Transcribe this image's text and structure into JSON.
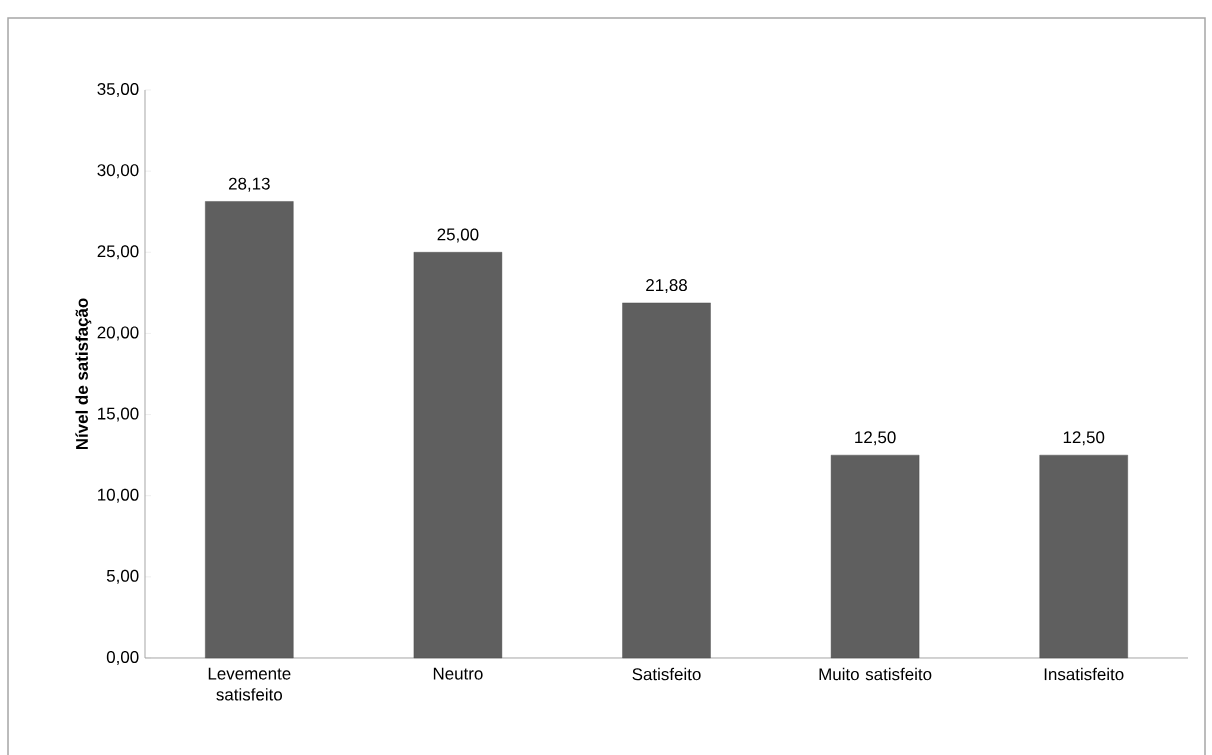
{
  "chart_data": {
    "type": "bar",
    "ylabel": "Nível de satisfação",
    "categories": [
      "Levemente satisfeito",
      "Neutro",
      "Satisfeito",
      "Muito satisfeito",
      "Insatisfeito"
    ],
    "values": [
      28.13,
      25.0,
      21.88,
      12.5,
      12.5
    ],
    "value_labels": [
      "28,13",
      "25,00",
      "21,88",
      "12,50",
      "12,50"
    ],
    "color": "#5f5f5f",
    "ylim": [
      0,
      35
    ],
    "yticks": [
      {
        "value": 0,
        "label": "0,00"
      },
      {
        "value": 5,
        "label": "5,00"
      },
      {
        "value": 10,
        "label": "10,00"
      },
      {
        "value": 15,
        "label": "15,00"
      },
      {
        "value": 20,
        "label": "20,00"
      },
      {
        "value": 25,
        "label": "25,00"
      },
      {
        "value": 30,
        "label": "30,00"
      },
      {
        "value": 35,
        "label": "35,00"
      }
    ]
  }
}
